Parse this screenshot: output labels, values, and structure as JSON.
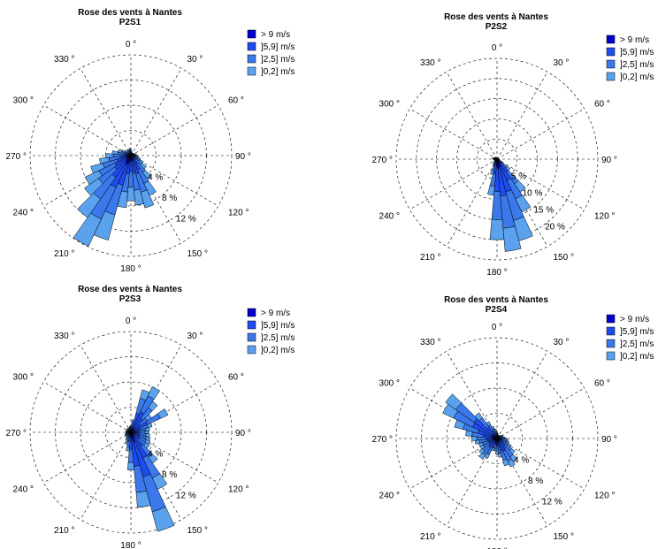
{
  "figure": {
    "palette": {
      "s1": "#0000cc",
      "s2": "#1f4cf0",
      "s3": "#3a78ec",
      "s4": "#5aa2ee"
    }
  },
  "chart_data": [
    {
      "type": "polar-bar",
      "title": "Rose des vents à Nantes",
      "subtitle": "P2S1",
      "direction_labels": [
        "0 °",
        "30 °",
        "60 °",
        "90 °",
        "120 °",
        "150 °",
        "180 °",
        "210 °",
        "240 °",
        "270 °",
        "300 °",
        "330 °"
      ],
      "radial_labels": [
        "4 %",
        "8 %",
        "12 %"
      ],
      "radial_ticks": [
        4,
        8,
        12
      ],
      "rmax": 16,
      "legend": [
        "> 9 m/s",
        "]5,9] m/s",
        "]2,5] m/s",
        "]0,2] m/s"
      ],
      "series_keys": [
        "s1",
        "s2",
        "s3",
        "s4"
      ],
      "sector_width_deg": 10,
      "directions_deg": [
        0,
        10,
        20,
        30,
        40,
        50,
        60,
        70,
        80,
        90,
        100,
        110,
        120,
        130,
        140,
        150,
        160,
        170,
        180,
        190,
        200,
        210,
        220,
        230,
        240,
        250,
        260,
        270,
        280,
        290,
        300,
        310,
        320,
        330,
        340,
        350
      ],
      "frequency_pct": [
        1.0,
        0.7,
        0.5,
        0.5,
        0.5,
        0.6,
        0.6,
        0.8,
        0.9,
        1.0,
        1.2,
        1.6,
        2.2,
        3.0,
        4.6,
        7.0,
        8.6,
        7.9,
        7.2,
        8.3,
        13.9,
        15.9,
        12.0,
        9.0,
        8.0,
        6.6,
        5.0,
        4.0,
        3.0,
        2.2,
        1.6,
        1.2,
        1.0,
        0.8,
        1.0,
        1.2
      ],
      "speed_shares_pct": [
        10,
        25,
        35,
        30
      ]
    },
    {
      "type": "polar-bar",
      "title": "Rose des vents à Nantes",
      "subtitle": "P2S2",
      "direction_labels": [
        "0 °",
        "30 °",
        "60 °",
        "90 °",
        "120 °",
        "150 °",
        "180 °",
        "210 °",
        "240 °",
        "270 °",
        "300 °",
        "330 °"
      ],
      "radial_labels": [
        "5 %",
        "10 %",
        "15 %",
        "20 %"
      ],
      "radial_ticks": [
        5,
        10,
        15,
        20
      ],
      "rmax": 25,
      "legend": [
        "> 9 m/s",
        "]5,9] m/s",
        "]2,5] m/s",
        "]0,2] m/s"
      ],
      "series_keys": [
        "s1",
        "s2",
        "s3",
        "s4"
      ],
      "sector_width_deg": 10,
      "directions_deg": [
        0,
        10,
        20,
        30,
        40,
        50,
        60,
        70,
        80,
        90,
        100,
        110,
        120,
        130,
        140,
        150,
        160,
        170,
        180,
        190,
        200,
        210,
        220,
        230,
        240,
        250,
        260,
        270,
        280,
        290,
        300,
        310,
        320,
        330,
        340,
        350
      ],
      "frequency_pct": [
        0.3,
        0.3,
        0.3,
        0.3,
        0.3,
        0.3,
        0.3,
        0.4,
        0.4,
        0.5,
        0.6,
        0.8,
        1.5,
        4.0,
        10.0,
        14.5,
        21.0,
        23.0,
        20.0,
        9.0,
        4.0,
        2.0,
        1.5,
        1.0,
        0.8,
        0.6,
        0.8,
        1.0,
        1.2,
        1.0,
        0.8,
        0.6,
        0.5,
        0.4,
        0.3,
        0.3
      ],
      "speed_shares_pct": [
        10,
        30,
        35,
        25
      ]
    },
    {
      "type": "polar-bar",
      "title": "Rose des vents à Nantes",
      "subtitle": "P2S3",
      "direction_labels": [
        "0 °",
        "30 °",
        "60 °",
        "90 °",
        "120 °",
        "150 °",
        "180 °",
        "210 °",
        "240 °",
        "270 °",
        "300 °",
        "330 °"
      ],
      "radial_labels": [
        "4 %",
        "8 %",
        "12 %"
      ],
      "radial_ticks": [
        4,
        8,
        12
      ],
      "rmax": 16,
      "legend": [
        "> 9 m/s",
        "]5,9] m/s",
        "]2,5] m/s",
        "]0,2] m/s"
      ],
      "series_keys": [
        "s1",
        "s2",
        "s3",
        "s4"
      ],
      "sector_width_deg": 10,
      "directions_deg": [
        0,
        10,
        20,
        30,
        40,
        50,
        60,
        70,
        80,
        90,
        100,
        110,
        120,
        130,
        140,
        150,
        160,
        170,
        180,
        190,
        200,
        210,
        220,
        230,
        240,
        250,
        260,
        270,
        280,
        290,
        300,
        310,
        320,
        330,
        340,
        350
      ],
      "frequency_pct": [
        1.0,
        2.0,
        7.0,
        8.0,
        6.0,
        4.0,
        6.5,
        3.5,
        3.0,
        2.8,
        3.0,
        3.2,
        3.4,
        3.6,
        6.0,
        10.0,
        16.3,
        12.0,
        6.0,
        3.0,
        2.0,
        1.5,
        1.2,
        1.0,
        1.0,
        1.0,
        0.8,
        0.8,
        0.8,
        0.8,
        0.8,
        0.8,
        0.8,
        0.8,
        0.8,
        1.0
      ],
      "speed_shares_pct": [
        10,
        35,
        35,
        20
      ]
    },
    {
      "type": "polar-bar",
      "title": "Rose des vents à Nantes",
      "subtitle": "P2S4",
      "direction_labels": [
        "0 °",
        "30 °",
        "60 °",
        "90 °",
        "120 °",
        "150 °",
        "180 °",
        "210 °",
        "240 °",
        "270 °",
        "300 °",
        "330 °"
      ],
      "radial_labels": [
        "4 %",
        "8 %",
        "12 %"
      ],
      "radial_ticks": [
        4,
        8,
        12
      ],
      "rmax": 16,
      "legend": [
        "> 9 m/s",
        "]5,9] m/s",
        "]2,5] m/s",
        "]0,2] m/s"
      ],
      "series_keys": [
        "s1",
        "s2",
        "s3",
        "s4"
      ],
      "sector_width_deg": 10,
      "directions_deg": [
        0,
        10,
        20,
        30,
        40,
        50,
        60,
        70,
        80,
        90,
        100,
        110,
        120,
        130,
        140,
        150,
        160,
        170,
        180,
        190,
        200,
        210,
        220,
        230,
        240,
        250,
        260,
        270,
        280,
        290,
        300,
        310,
        320,
        330,
        340,
        350
      ],
      "frequency_pct": [
        1.0,
        0.8,
        0.6,
        0.6,
        0.6,
        0.8,
        1.0,
        1.0,
        1.2,
        1.5,
        1.8,
        2.0,
        2.5,
        3.5,
        4.5,
        5.0,
        4.5,
        3.0,
        2.5,
        2.0,
        2.0,
        3.5,
        4.0,
        3.5,
        3.0,
        3.0,
        3.5,
        4.0,
        5.0,
        7.0,
        9.5,
        10.0,
        5.0,
        3.0,
        2.0,
        1.5
      ],
      "speed_shares_pct": [
        10,
        35,
        35,
        20
      ]
    }
  ]
}
